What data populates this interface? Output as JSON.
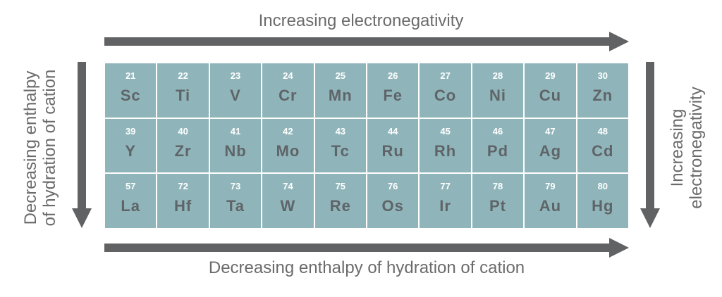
{
  "top_label": "Increasing electronegativity",
  "bottom_label": "Decreasing enthalpy of hydration of cation",
  "left_label": [
    "Decreasing enthalpy",
    "of hydration of cation"
  ],
  "right_label": [
    "Increasing",
    "electronegativity"
  ],
  "colors": {
    "cell": "#8fb5ba",
    "symbol": "#5f6468",
    "arrow": "#616264",
    "text": "#6b6b6b"
  },
  "elements": [
    {
      "num": "21",
      "sym": "Sc"
    },
    {
      "num": "22",
      "sym": "Ti"
    },
    {
      "num": "23",
      "sym": "V"
    },
    {
      "num": "24",
      "sym": "Cr"
    },
    {
      "num": "25",
      "sym": "Mn"
    },
    {
      "num": "26",
      "sym": "Fe"
    },
    {
      "num": "27",
      "sym": "Co"
    },
    {
      "num": "28",
      "sym": "Ni"
    },
    {
      "num": "29",
      "sym": "Cu"
    },
    {
      "num": "30",
      "sym": "Zn"
    },
    {
      "num": "39",
      "sym": "Y"
    },
    {
      "num": "40",
      "sym": "Zr"
    },
    {
      "num": "41",
      "sym": "Nb"
    },
    {
      "num": "42",
      "sym": "Mo"
    },
    {
      "num": "43",
      "sym": "Tc"
    },
    {
      "num": "44",
      "sym": "Ru"
    },
    {
      "num": "45",
      "sym": "Rh"
    },
    {
      "num": "46",
      "sym": "Pd"
    },
    {
      "num": "47",
      "sym": "Ag"
    },
    {
      "num": "48",
      "sym": "Cd"
    },
    {
      "num": "57",
      "sym": "La"
    },
    {
      "num": "72",
      "sym": "Hf"
    },
    {
      "num": "73",
      "sym": "Ta"
    },
    {
      "num": "74",
      "sym": "W"
    },
    {
      "num": "75",
      "sym": "Re"
    },
    {
      "num": "76",
      "sym": "Os"
    },
    {
      "num": "77",
      "sym": "Ir"
    },
    {
      "num": "78",
      "sym": "Pt"
    },
    {
      "num": "79",
      "sym": "Au"
    },
    {
      "num": "80",
      "sym": "Hg"
    }
  ]
}
